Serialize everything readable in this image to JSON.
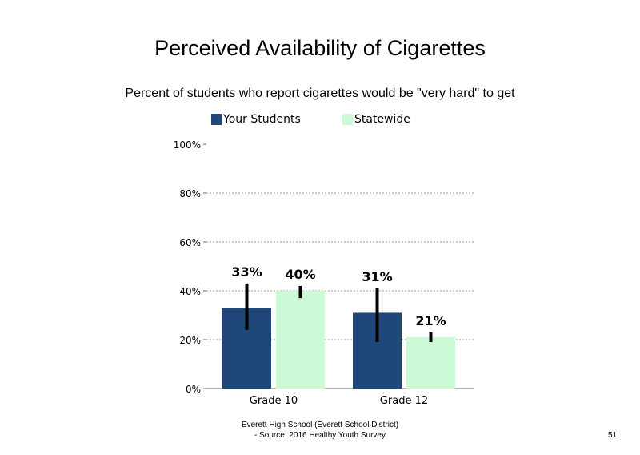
{
  "chart_data": {
    "type": "bar",
    "title": "Perceived Availability of Cigarettes",
    "subtitle": "Percent of students who report cigarettes would be \"very hard\" to get",
    "categories": [
      "Grade 10",
      "Grade 12"
    ],
    "series": [
      {
        "name": "Your Students",
        "color": "#1f477a",
        "values": [
          33,
          31
        ],
        "labels": [
          "33%",
          "31%"
        ],
        "error_low": [
          24,
          19
        ],
        "error_high": [
          43,
          41
        ]
      },
      {
        "name": "Statewide",
        "color": "#ccfad6",
        "values": [
          40,
          21
        ],
        "labels": [
          "40%",
          "21%"
        ],
        "error_low": [
          37,
          19
        ],
        "error_high": [
          42,
          23
        ]
      }
    ],
    "ylim": [
      0,
      100
    ],
    "yticks": [
      0,
      20,
      40,
      60,
      80,
      100
    ],
    "ytick_labels": [
      "0%",
      "20%",
      "40%",
      "60%",
      "80%",
      "100%"
    ],
    "grid": true,
    "legend": "top-left"
  },
  "footer": {
    "line1": "Everett High School (Everett School District)",
    "line2": "- Source: 2016 Healthy Youth Survey",
    "page_number": "51"
  }
}
